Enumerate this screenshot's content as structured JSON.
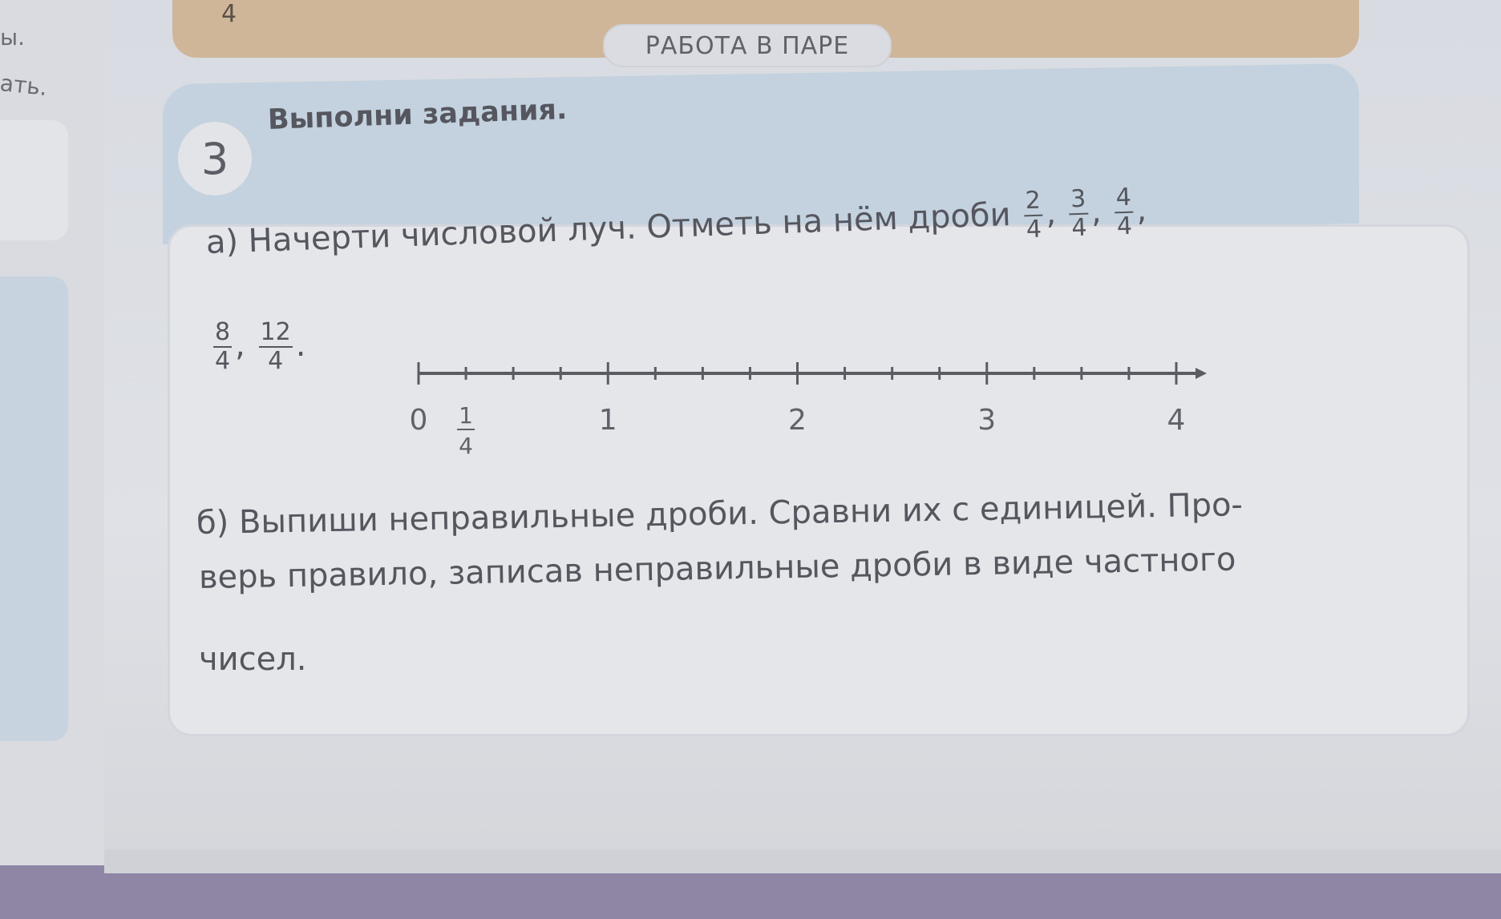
{
  "left_page": {
    "fragments": [
      "ы.",
      "ать."
    ]
  },
  "top_box": {
    "number": "4"
  },
  "section_badge": "РАБОТА В ПАРЕ",
  "task": {
    "number": "3",
    "title": "Выполни задания.",
    "part_a": {
      "text": "а) Начерти числовой луч. Отметь на нём дроби",
      "fractions": [
        {
          "num": "2",
          "den": "4"
        },
        {
          "num": "3",
          "den": "4"
        },
        {
          "num": "4",
          "den": "4"
        },
        {
          "num": "8",
          "den": "4"
        },
        {
          "num": "12",
          "den": "4"
        }
      ]
    },
    "number_line": {
      "min": 0,
      "max": 4,
      "tick_step": 0.25,
      "labels": [
        "0",
        "1",
        "2",
        "3",
        "4"
      ],
      "fraction_label": {
        "num": "1",
        "den": "4"
      }
    },
    "part_b": {
      "lines": [
        "б) Выпиши неправильные дроби. Сравни их с единицей. Про-",
        "верь правило, записав неправильные дроби в виде частного",
        "чисел."
      ]
    }
  }
}
